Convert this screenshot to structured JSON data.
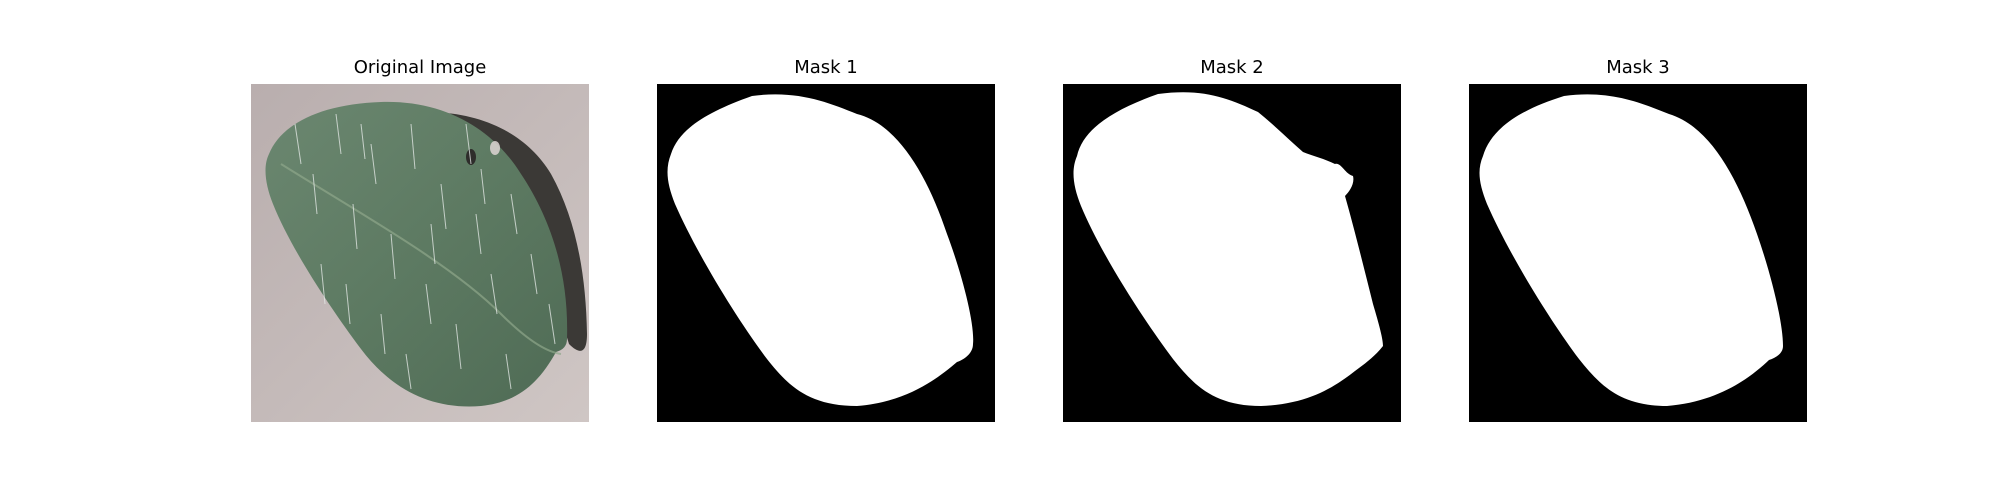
{
  "figure": {
    "panels": [
      {
        "title": "Original Image"
      },
      {
        "title": "Mask 1"
      },
      {
        "title": "Mask 2"
      },
      {
        "title": "Mask 3"
      }
    ]
  },
  "colors": {
    "background": "#c4b8b8",
    "leaf": "#5f7a63",
    "leaf_shadow": "#3d3d3a",
    "mask_background": "#000000",
    "mask_foreground": "#ffffff"
  }
}
